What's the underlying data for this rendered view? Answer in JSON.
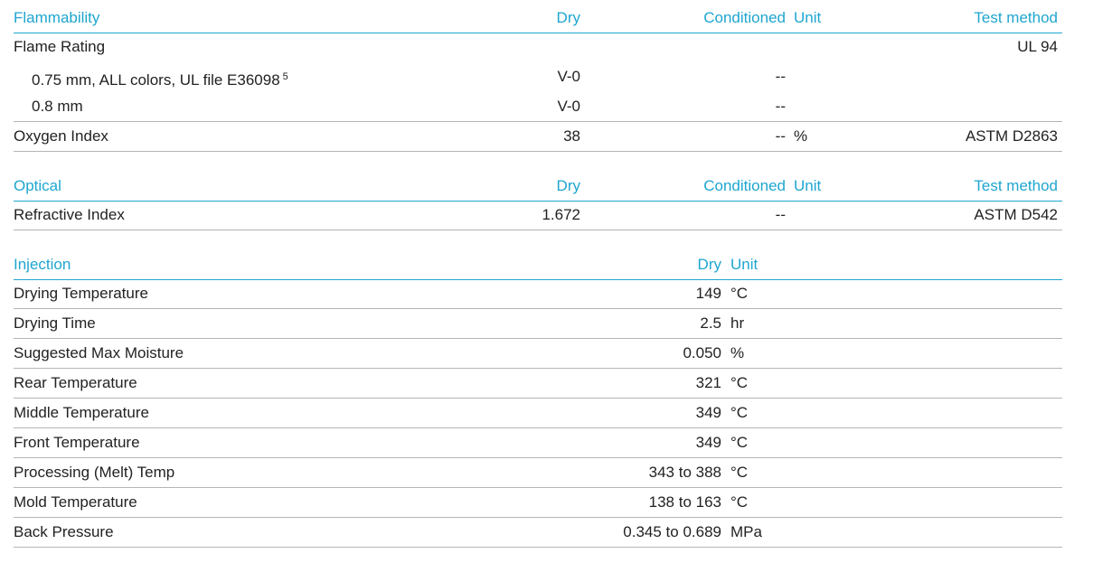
{
  "sections": [
    {
      "header": {
        "property": "Flammability",
        "dry": "Dry",
        "conditioned": "Conditioned",
        "unit": "Unit",
        "test_method": "Test method"
      },
      "rows": [
        {
          "property": "Flame Rating",
          "test_method": "UL 94",
          "children": [
            {
              "property": "0.75 mm, ALL colors, UL file E36098",
              "note": "5",
              "dry": "V-0",
              "conditioned": "--"
            },
            {
              "property": "0.8 mm",
              "dry": "V-0",
              "conditioned": "--"
            }
          ]
        },
        {
          "property": "Oxygen Index",
          "dry": "38",
          "conditioned": "--",
          "unit": "%",
          "test_method": "ASTM D2863"
        }
      ]
    },
    {
      "header": {
        "property": "Optical",
        "dry": "Dry",
        "conditioned": "Conditioned",
        "unit": "Unit",
        "test_method": "Test method"
      },
      "rows": [
        {
          "property": "Refractive Index",
          "dry": "1.672",
          "conditioned": "--",
          "test_method": "ASTM D542"
        }
      ]
    },
    {
      "header": {
        "property": "Injection",
        "dry": "Dry",
        "unit": "Unit"
      },
      "rows": [
        {
          "property": "Drying Temperature",
          "dry": "149",
          "unit": "°C"
        },
        {
          "property": "Drying Time",
          "dry": "2.5",
          "unit": "hr"
        },
        {
          "property": "Suggested Max Moisture",
          "dry": "0.050",
          "unit": "%"
        },
        {
          "property": "Rear Temperature",
          "dry": "321",
          "unit": "°C"
        },
        {
          "property": "Middle Temperature",
          "dry": "349",
          "unit": "°C"
        },
        {
          "property": "Front Temperature",
          "dry": "349",
          "unit": "°C"
        },
        {
          "property": "Processing (Melt) Temp",
          "dry": "343 to 388",
          "unit": "°C"
        },
        {
          "property": "Mold Temperature",
          "dry": "138 to 163",
          "unit": "°C"
        },
        {
          "property": "Back Pressure",
          "dry": "0.345 to 0.689",
          "unit": "MPa"
        }
      ]
    }
  ]
}
